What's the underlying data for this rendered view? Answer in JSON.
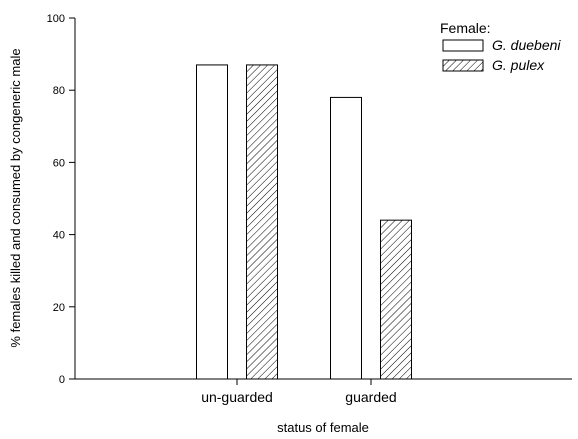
{
  "chart_data": {
    "type": "bar",
    "categories": [
      "un-guarded",
      "guarded"
    ],
    "series": [
      {
        "name": "G. duebeni",
        "values": [
          87,
          78
        ],
        "fill": "#ffffff",
        "pattern": "none"
      },
      {
        "name": "G. pulex",
        "values": [
          87,
          44
        ],
        "fill": "#ffffff",
        "pattern": "diagonal-hatch"
      }
    ],
    "title": "",
    "xlabel": "status of female",
    "ylabel": "% females killed and consumed by congeneric male",
    "ylim": [
      0,
      100
    ],
    "yticks": [
      0,
      20,
      40,
      60,
      80,
      100
    ],
    "legend_title": "Female:",
    "legend_position": "top-right",
    "grid": false
  }
}
